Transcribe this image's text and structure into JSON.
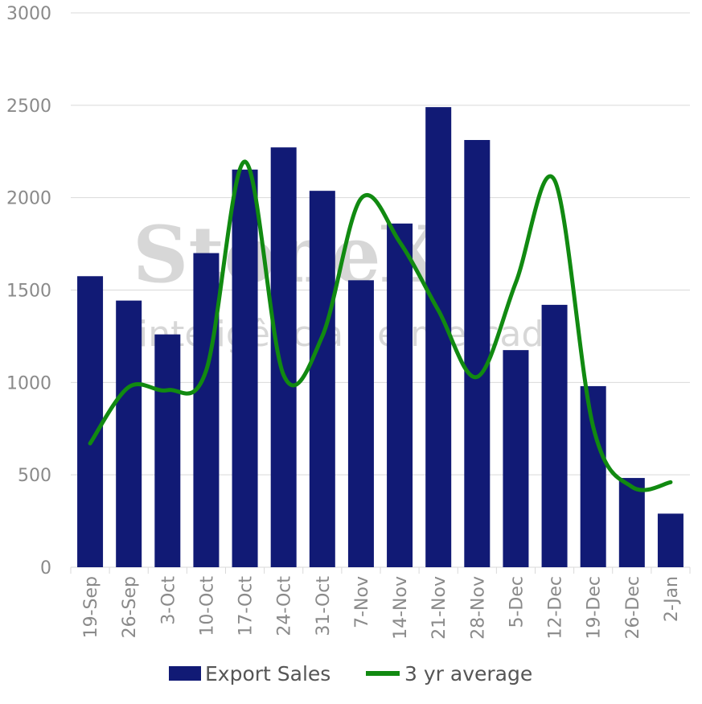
{
  "watermark": {
    "brand": "StoneX",
    "tagline": "inteligência de mercado"
  },
  "chart_data": {
    "type": "bar",
    "categories": [
      "19-Sep",
      "26-Sep",
      "3-Oct",
      "10-Oct",
      "17-Oct",
      "24-Oct",
      "31-Oct",
      "7-Nov",
      "14-Nov",
      "21-Nov",
      "28-Nov",
      "5-Dec",
      "12-Dec",
      "19-Dec",
      "26-Dec",
      "2-Jan"
    ],
    "series": [
      {
        "name": "Export Sales",
        "type": "bar",
        "color": "#111a75",
        "values": [
          1575,
          1443,
          1260,
          1700,
          2152,
          2272,
          2037,
          1553,
          1860,
          2490,
          2312,
          1175,
          1420,
          980,
          483,
          290
        ]
      },
      {
        "name": "3 yr average",
        "type": "line",
        "color": "#118a11",
        "values": [
          670,
          975,
          958,
          1065,
          2195,
          1040,
          1250,
          1995,
          1760,
          1390,
          1030,
          1540,
          2095,
          760,
          435,
          460
        ]
      }
    ],
    "y_ticks": [
      "0",
      "500",
      "1000",
      "1500",
      "2000",
      "2500",
      "3000"
    ],
    "ylim": [
      0,
      3000
    ],
    "grid": "horizontal",
    "legend_position": "bottom"
  }
}
